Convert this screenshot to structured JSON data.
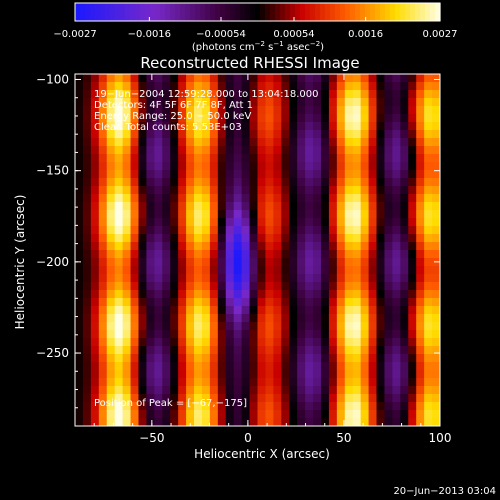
{
  "chart_data": {
    "type": "heatmap",
    "title": "Reconstructed RHESSI Image",
    "xlabel": "Heliocentric X (arcsec)",
    "ylabel": "Heliocentric Y (arcsec)",
    "xlim": [
      -90,
      100
    ],
    "ylim": [
      -290,
      -97
    ],
    "xticks": [
      -50,
      0,
      50,
      100
    ],
    "xtick_labels": [
      "−50",
      "0",
      "50",
      "100"
    ],
    "yticks": [
      -100,
      -150,
      -200,
      -250
    ],
    "ytick_labels": [
      "−100",
      "−150",
      "−200",
      "−250"
    ],
    "colorbar": {
      "range": [
        -0.0027,
        0.0027
      ],
      "ticks": [
        -0.0027,
        -0.0016,
        -0.00054,
        0.00054,
        0.0016,
        0.0027
      ],
      "tick_labels": [
        "−0.0027",
        "−0.0016",
        "−0.00054",
        "0.00054",
        "0.0016",
        "0.0027"
      ],
      "units_prefix": "(photons cm",
      "units_exp1": "−2",
      "units_mid": " s",
      "units_exp2": "−1",
      "units_mid2": " asec",
      "units_exp3": "−2",
      "units_suffix": ")"
    },
    "annotations": [
      "19−Jun−2004 12:59:28.000 to 13:04:18.000",
      "Detectors: 4F 5F 6F 7F 8F, Att 1",
      "Energy Range: 25.0 − 50.0 keV",
      "Clean    Total counts: 5.53E+03"
    ],
    "peak_label": "Position of Peak = [−67,−175]",
    "peak": {
      "x": -67,
      "y": -175,
      "value": 0.0027
    },
    "fringe_model": {
      "columns_x": [
        -67,
        -25,
        10,
        55,
        95
      ],
      "column_amplitude": [
        1.0,
        0.85,
        0.45,
        0.95,
        0.8
      ],
      "row_centers_y": [
        -175,
        -235,
        -120,
        -285
      ],
      "trough_columns_x": [
        -48,
        33,
        78
      ],
      "trough_center": {
        "x": -5,
        "y": -200
      }
    }
  },
  "footer": {
    "timestamp": "20−Jun−2013 03:04"
  }
}
